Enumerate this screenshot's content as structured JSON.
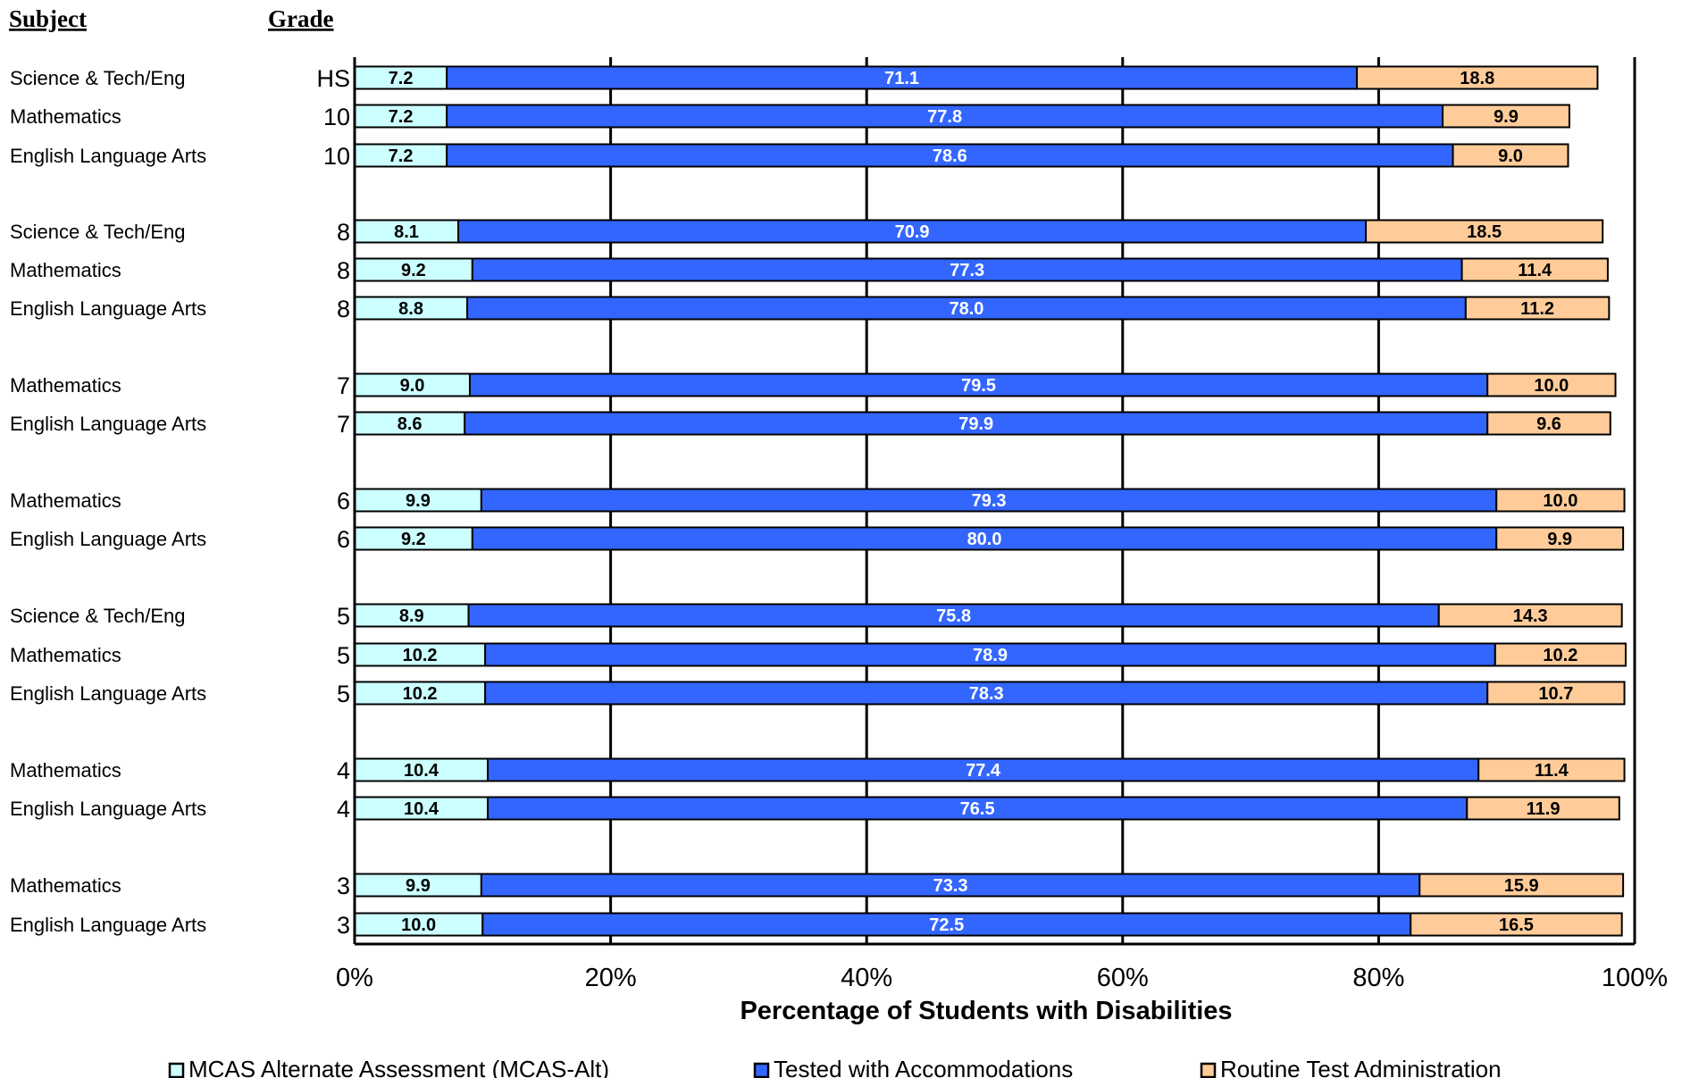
{
  "headers": {
    "subject": "Subject",
    "grade": "Grade"
  },
  "colors": {
    "alt": "#CCFFFF",
    "accom": "#3366FF",
    "routine": "#FFCC99"
  },
  "chart_data": {
    "type": "bar",
    "orientation": "horizontal",
    "stacked": true,
    "xlabel": "Percentage of Students with Disabilities",
    "xlim": [
      0,
      100
    ],
    "xticks": [
      "0%",
      "20%",
      "40%",
      "60%",
      "80%",
      "100%"
    ],
    "grid": "vertical",
    "legend_position": "bottom",
    "series": [
      {
        "name": "MCAS Alternate Assessment (MCAS-Alt)",
        "color": "#CCFFFF"
      },
      {
        "name": "Tested with Accommodations",
        "color": "#3366FF"
      },
      {
        "name": "Routine Test Administration",
        "color": "#FFCC99"
      }
    ],
    "rows": [
      {
        "subject": "Science & Tech/Eng",
        "grade": "HS",
        "values": [
          7.2,
          71.1,
          18.8
        ]
      },
      {
        "subject": "Mathematics",
        "grade": "10",
        "values": [
          7.2,
          77.8,
          9.9
        ]
      },
      {
        "subject": "English Language Arts",
        "grade": "10",
        "values": [
          7.2,
          78.6,
          9.0
        ]
      },
      {
        "subject": "Science & Tech/Eng",
        "grade": "8",
        "values": [
          8.1,
          70.9,
          18.5
        ]
      },
      {
        "subject": "Mathematics",
        "grade": "8",
        "values": [
          9.2,
          77.3,
          11.4
        ]
      },
      {
        "subject": "English Language Arts",
        "grade": "8",
        "values": [
          8.8,
          78.0,
          11.2
        ]
      },
      {
        "subject": "Mathematics",
        "grade": "7",
        "values": [
          9.0,
          79.5,
          10.0
        ]
      },
      {
        "subject": "English Language Arts",
        "grade": "7",
        "values": [
          8.6,
          79.9,
          9.6
        ]
      },
      {
        "subject": "Mathematics",
        "grade": "6",
        "values": [
          9.9,
          79.3,
          10.0
        ]
      },
      {
        "subject": "English Language Arts",
        "grade": "6",
        "values": [
          9.2,
          80.0,
          9.9
        ]
      },
      {
        "subject": "Science & Tech/Eng",
        "grade": "5",
        "values": [
          8.9,
          75.8,
          14.3
        ]
      },
      {
        "subject": "Mathematics",
        "grade": "5",
        "values": [
          10.2,
          78.9,
          10.2
        ]
      },
      {
        "subject": "English Language Arts",
        "grade": "5",
        "values": [
          10.2,
          78.3,
          10.7
        ]
      },
      {
        "subject": "Mathematics",
        "grade": "4",
        "values": [
          10.4,
          77.4,
          11.4
        ]
      },
      {
        "subject": "English Language Arts",
        "grade": "4",
        "values": [
          10.4,
          76.5,
          11.9
        ]
      },
      {
        "subject": "Mathematics",
        "grade": "3",
        "values": [
          9.9,
          73.3,
          15.9
        ]
      },
      {
        "subject": "English Language Arts",
        "grade": "3",
        "values": [
          10.0,
          72.5,
          16.5
        ]
      }
    ]
  }
}
